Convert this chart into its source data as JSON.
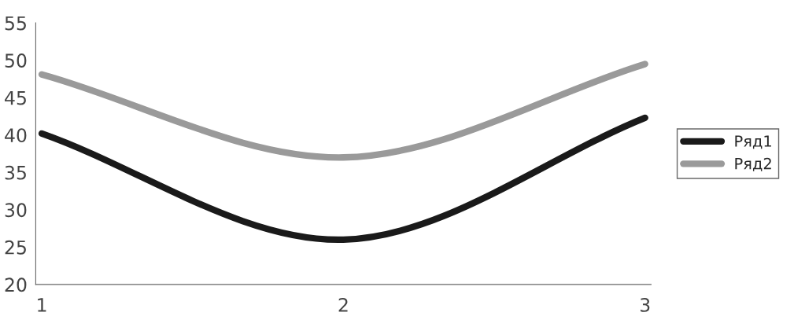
{
  "chart_data": {
    "type": "line",
    "categories": [
      "1",
      "2",
      "3"
    ],
    "series": [
      {
        "name": "Ряд1",
        "color": "#1a1a1a",
        "values": [
          40.2,
          26,
          42.3
        ]
      },
      {
        "name": "Ряд2",
        "color": "#9a9a9a",
        "values": [
          48.1,
          37,
          49.5
        ]
      }
    ],
    "ylim": [
      20,
      55
    ],
    "yticks": [
      20,
      25,
      30,
      35,
      40,
      45,
      50,
      55
    ],
    "grid": false,
    "legend": "right",
    "marker": "none",
    "line_style": "solid"
  }
}
